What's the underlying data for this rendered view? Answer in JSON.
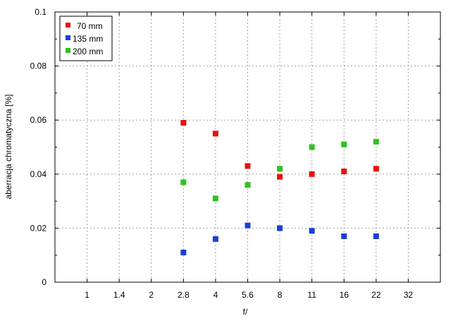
{
  "chart_data": {
    "type": "scatter",
    "title": "",
    "xlabel": "f/",
    "ylabel": "aberracja chromatyczna [%]",
    "categories": [
      "1",
      "1.4",
      "2",
      "2.8",
      "4",
      "5.6",
      "8",
      "11",
      "16",
      "22",
      "32"
    ],
    "y_ticks": [
      "0",
      "0.02",
      "0.04",
      "0.06",
      "0.08",
      "0.1"
    ],
    "ylim": [
      0,
      0.1
    ],
    "grid": true,
    "legend_position": "top-left",
    "series": [
      {
        "name": "70 mm",
        "color": "#e81010",
        "points": [
          {
            "x": "2.8",
            "y": 0.059
          },
          {
            "x": "4",
            "y": 0.055
          },
          {
            "x": "5.6",
            "y": 0.043
          },
          {
            "x": "8",
            "y": 0.039
          },
          {
            "x": "11",
            "y": 0.04
          },
          {
            "x": "16",
            "y": 0.041
          },
          {
            "x": "22",
            "y": 0.042
          }
        ]
      },
      {
        "name": "135 mm",
        "color": "#1a3ed6",
        "points": [
          {
            "x": "2.8",
            "y": 0.011
          },
          {
            "x": "4",
            "y": 0.016
          },
          {
            "x": "5.6",
            "y": 0.021
          },
          {
            "x": "8",
            "y": 0.02
          },
          {
            "x": "11",
            "y": 0.019
          },
          {
            "x": "16",
            "y": 0.017
          },
          {
            "x": "22",
            "y": 0.017
          }
        ]
      },
      {
        "name": "200 mm",
        "color": "#2ec21e",
        "points": [
          {
            "x": "2.8",
            "y": 0.037
          },
          {
            "x": "4",
            "y": 0.031
          },
          {
            "x": "5.6",
            "y": 0.036
          },
          {
            "x": "8",
            "y": 0.042
          },
          {
            "x": "11",
            "y": 0.05
          },
          {
            "x": "16",
            "y": 0.051
          },
          {
            "x": "22",
            "y": 0.052
          }
        ]
      }
    ]
  }
}
